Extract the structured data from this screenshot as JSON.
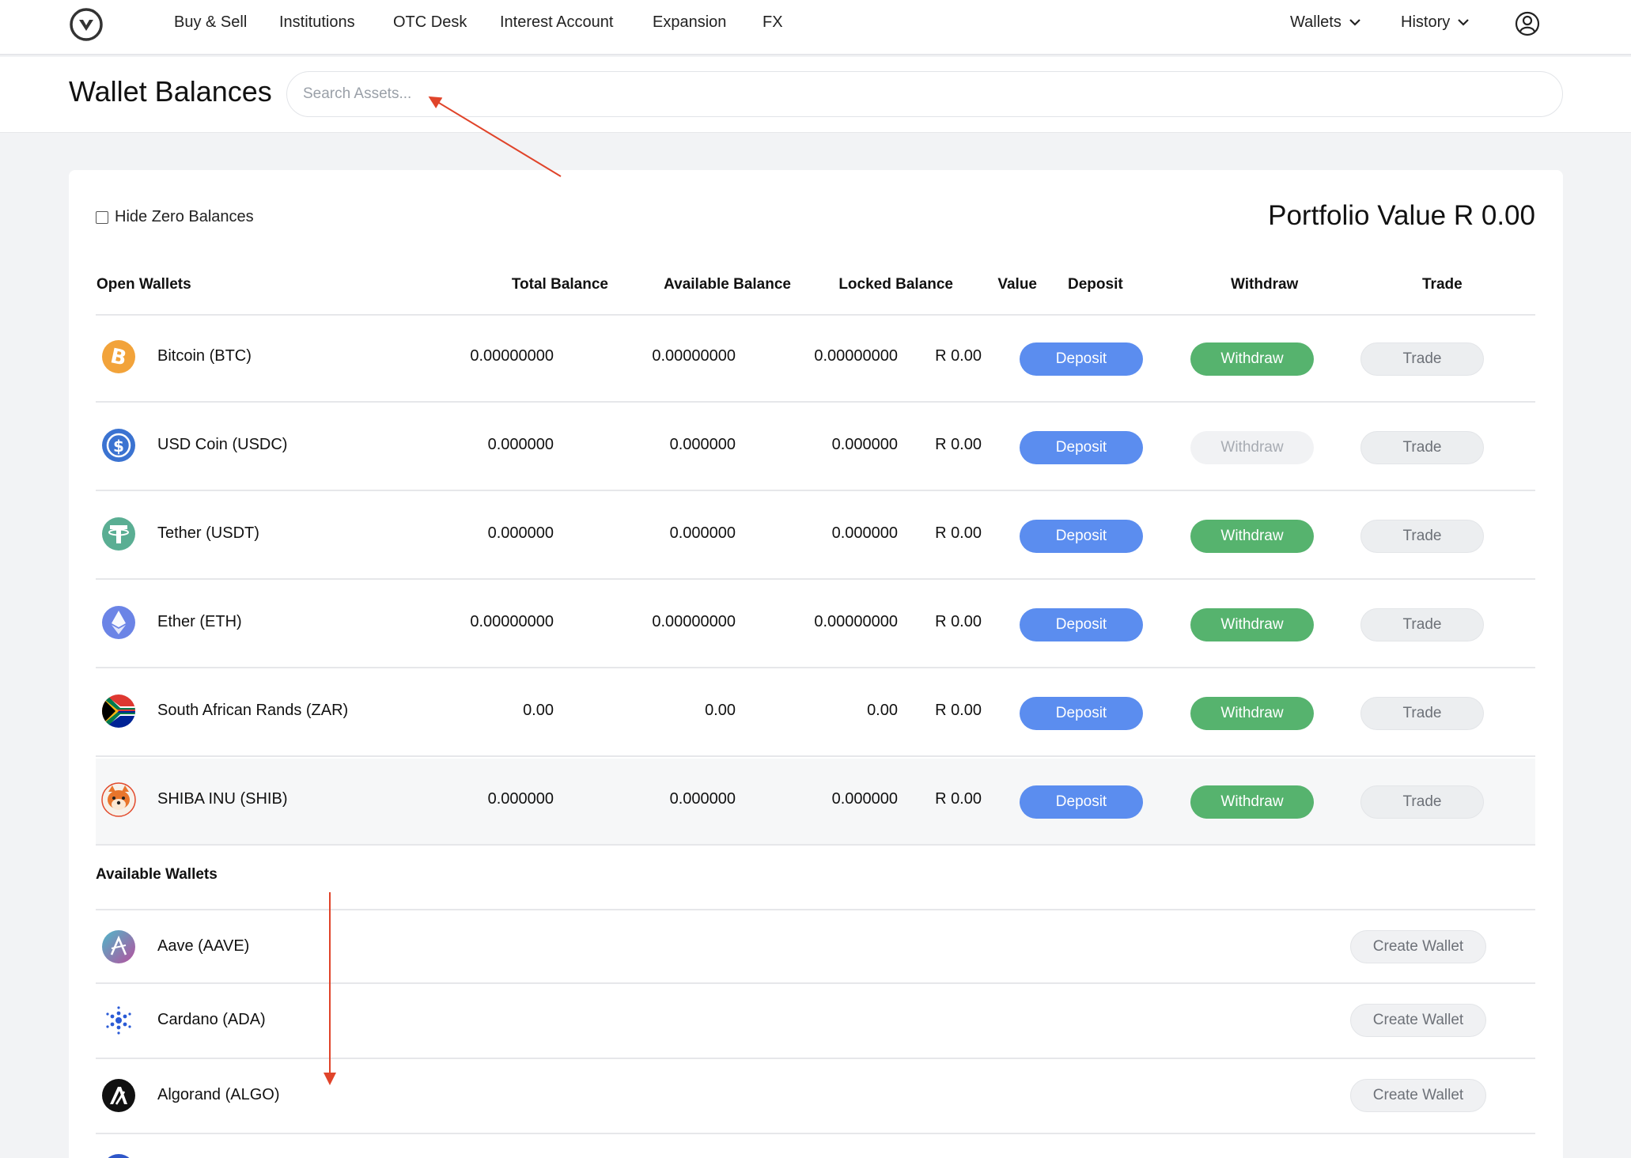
{
  "nav": {
    "items": [
      "Buy & Sell",
      "Institutions",
      "OTC Desk",
      "Interest Account",
      "Expansion",
      "FX"
    ],
    "wallets_label": "Wallets",
    "history_label": "History"
  },
  "header": {
    "title": "Wallet Balances",
    "search_placeholder": "Search Assets..."
  },
  "card": {
    "hide_zero_label": "Hide Zero Balances",
    "portfolio_value": "Portfolio Value R 0.00"
  },
  "table": {
    "columns": [
      "Open Wallets",
      "Total Balance",
      "Available Balance",
      "Locked Balance",
      "Value",
      "Deposit",
      "Withdraw",
      "Trade"
    ],
    "rows": [
      {
        "name": "Bitcoin (BTC)",
        "icon": "bitcoin-icon",
        "total": "0.00000000",
        "available": "0.00000000",
        "locked": "0.00000000",
        "value": "R 0.00",
        "deposit": "Deposit",
        "withdraw": "Withdraw",
        "trade": "Trade"
      },
      {
        "name": "USD Coin (USDC)",
        "icon": "usdc-icon",
        "total": "0.000000",
        "available": "0.000000",
        "locked": "0.000000",
        "value": "R 0.00",
        "deposit": "Deposit",
        "withdraw": "Withdraw",
        "trade": "Trade"
      },
      {
        "name": "Tether (USDT)",
        "icon": "tether-icon",
        "total": "0.000000",
        "available": "0.000000",
        "locked": "0.000000",
        "value": "R 0.00",
        "deposit": "Deposit",
        "withdraw": "Withdraw",
        "trade": "Trade"
      },
      {
        "name": "Ether (ETH)",
        "icon": "ethereum-icon",
        "total": "0.00000000",
        "available": "0.00000000",
        "locked": "0.00000000",
        "value": "R 0.00",
        "deposit": "Deposit",
        "withdraw": "Withdraw",
        "trade": "Trade"
      },
      {
        "name": "South African Rands (ZAR)",
        "icon": "south-africa-flag-icon",
        "total": "0.00",
        "available": "0.00",
        "locked": "0.00",
        "value": "R 0.00",
        "deposit": "Deposit",
        "withdraw": "Withdraw",
        "trade": "Trade"
      },
      {
        "name": "SHIBA INU (SHIB)",
        "icon": "shiba-inu-icon",
        "total": "0.000000",
        "available": "0.000000",
        "locked": "0.000000",
        "value": "R 0.00",
        "deposit": "Deposit",
        "withdraw": "Withdraw",
        "trade": "Trade"
      }
    ]
  },
  "available": {
    "title": "Available Wallets",
    "rows": [
      {
        "name": "Aave (AAVE)",
        "icon": "aave-icon",
        "action": "Create Wallet"
      },
      {
        "name": "Cardano (ADA)",
        "icon": "cardano-icon",
        "action": "Create Wallet"
      },
      {
        "name": "Algorand (ALGO)",
        "icon": "algorand-icon",
        "action": "Create Wallet"
      }
    ]
  },
  "colors": {
    "deposit": "#5b8def",
    "withdraw": "#56b36e",
    "annotation_arrow": "#e0442a"
  }
}
